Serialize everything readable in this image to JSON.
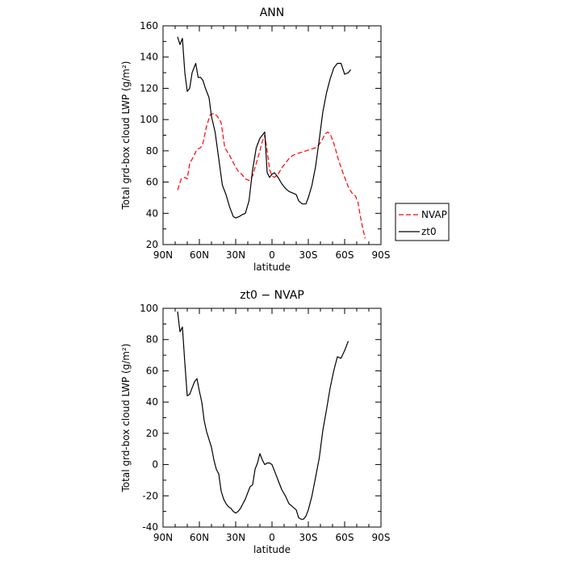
{
  "chart_data": [
    {
      "type": "line",
      "title": "ANN",
      "xlabel": "latitude",
      "ylabel": "Total grd-box cloud LWP (g/m²)",
      "xlim": [
        90,
        -90
      ],
      "ylim": [
        20,
        160
      ],
      "x_ticks": [
        90,
        60,
        30,
        0,
        -30,
        -60,
        -90
      ],
      "x_tick_labels": [
        "90N",
        "60N",
        "30N",
        "0",
        "30S",
        "60S",
        "90S"
      ],
      "y_ticks": [
        20,
        40,
        60,
        80,
        100,
        120,
        140,
        160
      ],
      "legend_position": "outside-right",
      "series": [
        {
          "name": "NVAP",
          "color": "#ff0000",
          "dash": "dashed",
          "points": [
            [
              78,
              55
            ],
            [
              75,
              62
            ],
            [
              72,
              63
            ],
            [
              70,
              62
            ],
            [
              68,
              72
            ],
            [
              65,
              76
            ],
            [
              62,
              81
            ],
            [
              59,
              82
            ],
            [
              57,
              85
            ],
            [
              54,
              96
            ],
            [
              51,
              103
            ],
            [
              48,
              104
            ],
            [
              45,
              102
            ],
            [
              42,
              98
            ],
            [
              39,
              82
            ],
            [
              35,
              77
            ],
            [
              31,
              71
            ],
            [
              28,
              67
            ],
            [
              25,
              65
            ],
            [
              22,
              62
            ],
            [
              19,
              61
            ],
            [
              16,
              64
            ],
            [
              13,
              72
            ],
            [
              10,
              80
            ],
            [
              8,
              86
            ],
            [
              6,
              90
            ],
            [
              4,
              80
            ],
            [
              2,
              68
            ],
            [
              0,
              64
            ],
            [
              -2,
              63
            ],
            [
              -5,
              65
            ],
            [
              -8,
              69
            ],
            [
              -11,
              72
            ],
            [
              -14,
              75
            ],
            [
              -17,
              77
            ],
            [
              -20,
              78
            ],
            [
              -24,
              79
            ],
            [
              -28,
              80
            ],
            [
              -32,
              81
            ],
            [
              -36,
              82
            ],
            [
              -39,
              84
            ],
            [
              -42,
              88
            ],
            [
              -44,
              91
            ],
            [
              -46,
              92
            ],
            [
              -48,
              91
            ],
            [
              -51,
              85
            ],
            [
              -55,
              74
            ],
            [
              -59,
              65
            ],
            [
              -63,
              57
            ],
            [
              -66,
              53
            ],
            [
              -69,
              51
            ],
            [
              -71,
              47
            ],
            [
              -73,
              38
            ],
            [
              -75,
              30
            ],
            [
              -77,
              24
            ]
          ]
        },
        {
          "name": "zt0",
          "color": "#000000",
          "dash": "solid",
          "points": [
            [
              78,
              153
            ],
            [
              76,
              148
            ],
            [
              74,
              152
            ],
            [
              72,
              130
            ],
            [
              70,
              118
            ],
            [
              68,
              120
            ],
            [
              66,
              130
            ],
            [
              63,
              136
            ],
            [
              61,
              127
            ],
            [
              59,
              127
            ],
            [
              57,
              125
            ],
            [
              55,
              120
            ],
            [
              52,
              114
            ],
            [
              50,
              102
            ],
            [
              47,
              92
            ],
            [
              44,
              75
            ],
            [
              41,
              58
            ],
            [
              38,
              52
            ],
            [
              35,
              44
            ],
            [
              32,
              38
            ],
            [
              30,
              37
            ],
            [
              27,
              38
            ],
            [
              25,
              39
            ],
            [
              22,
              40
            ],
            [
              19,
              48
            ],
            [
              16,
              68
            ],
            [
              13,
              82
            ],
            [
              10,
              88
            ],
            [
              8,
              90
            ],
            [
              6,
              92
            ],
            [
              4,
              66
            ],
            [
              2,
              63
            ],
            [
              0,
              65
            ],
            [
              -2,
              66
            ],
            [
              -5,
              63
            ],
            [
              -8,
              59
            ],
            [
              -11,
              56
            ],
            [
              -14,
              54
            ],
            [
              -17,
              53
            ],
            [
              -20,
              52
            ],
            [
              -22,
              48
            ],
            [
              -25,
              46
            ],
            [
              -28,
              46
            ],
            [
              -30,
              50
            ],
            [
              -33,
              58
            ],
            [
              -36,
              70
            ],
            [
              -39,
              87
            ],
            [
              -42,
              105
            ],
            [
              -45,
              117
            ],
            [
              -48,
              126
            ],
            [
              -51,
              133
            ],
            [
              -54,
              136
            ],
            [
              -57,
              136
            ],
            [
              -60,
              129
            ],
            [
              -63,
              130
            ],
            [
              -65,
              132
            ]
          ]
        }
      ]
    },
    {
      "type": "line",
      "title": "zt0 − NVAP",
      "xlabel": "latitude",
      "ylabel": "Total grd-box cloud LWP (g/m²)",
      "xlim": [
        90,
        -90
      ],
      "ylim": [
        -40,
        100
      ],
      "x_ticks": [
        90,
        60,
        30,
        0,
        -30,
        -60,
        -90
      ],
      "x_tick_labels": [
        "90N",
        "60N",
        "30N",
        "0",
        "30S",
        "60S",
        "90S"
      ],
      "y_ticks": [
        -40,
        -20,
        0,
        20,
        40,
        60,
        80,
        100
      ],
      "series": [
        {
          "color": "#000000",
          "dash": "solid",
          "points": [
            [
              78,
              98
            ],
            [
              76,
              85
            ],
            [
              74,
              88
            ],
            [
              72,
              65
            ],
            [
              70,
              44
            ],
            [
              68,
              45
            ],
            [
              66,
              49
            ],
            [
              64,
              53
            ],
            [
              62,
              55
            ],
            [
              60,
              47
            ],
            [
              58,
              40
            ],
            [
              56,
              28
            ],
            [
              54,
              21
            ],
            [
              52,
              16
            ],
            [
              50,
              11
            ],
            [
              48,
              3
            ],
            [
              46,
              -3
            ],
            [
              44,
              -6
            ],
            [
              42,
              -17
            ],
            [
              40,
              -22
            ],
            [
              38,
              -25
            ],
            [
              36,
              -27
            ],
            [
              34,
              -28
            ],
            [
              32,
              -30
            ],
            [
              30,
              -31
            ],
            [
              28,
              -30
            ],
            [
              26,
              -28
            ],
            [
              24,
              -25
            ],
            [
              22,
              -22
            ],
            [
              20,
              -18
            ],
            [
              18,
              -14
            ],
            [
              16,
              -13
            ],
            [
              14,
              -3
            ],
            [
              12,
              1
            ],
            [
              10,
              7
            ],
            [
              8,
              3
            ],
            [
              6,
              0
            ],
            [
              4,
              1
            ],
            [
              2,
              1
            ],
            [
              0,
              0
            ],
            [
              -2,
              -4
            ],
            [
              -5,
              -10
            ],
            [
              -8,
              -16
            ],
            [
              -11,
              -20
            ],
            [
              -14,
              -25
            ],
            [
              -17,
              -27
            ],
            [
              -20,
              -29
            ],
            [
              -22,
              -34
            ],
            [
              -24,
              -35
            ],
            [
              -26,
              -35
            ],
            [
              -28,
              -33
            ],
            [
              -30,
              -29
            ],
            [
              -33,
              -20
            ],
            [
              -36,
              -8
            ],
            [
              -39,
              4
            ],
            [
              -42,
              22
            ],
            [
              -45,
              35
            ],
            [
              -48,
              49
            ],
            [
              -51,
              60
            ],
            [
              -54,
              69
            ],
            [
              -57,
              68
            ],
            [
              -60,
              73
            ],
            [
              -63,
              79
            ]
          ]
        }
      ]
    }
  ]
}
